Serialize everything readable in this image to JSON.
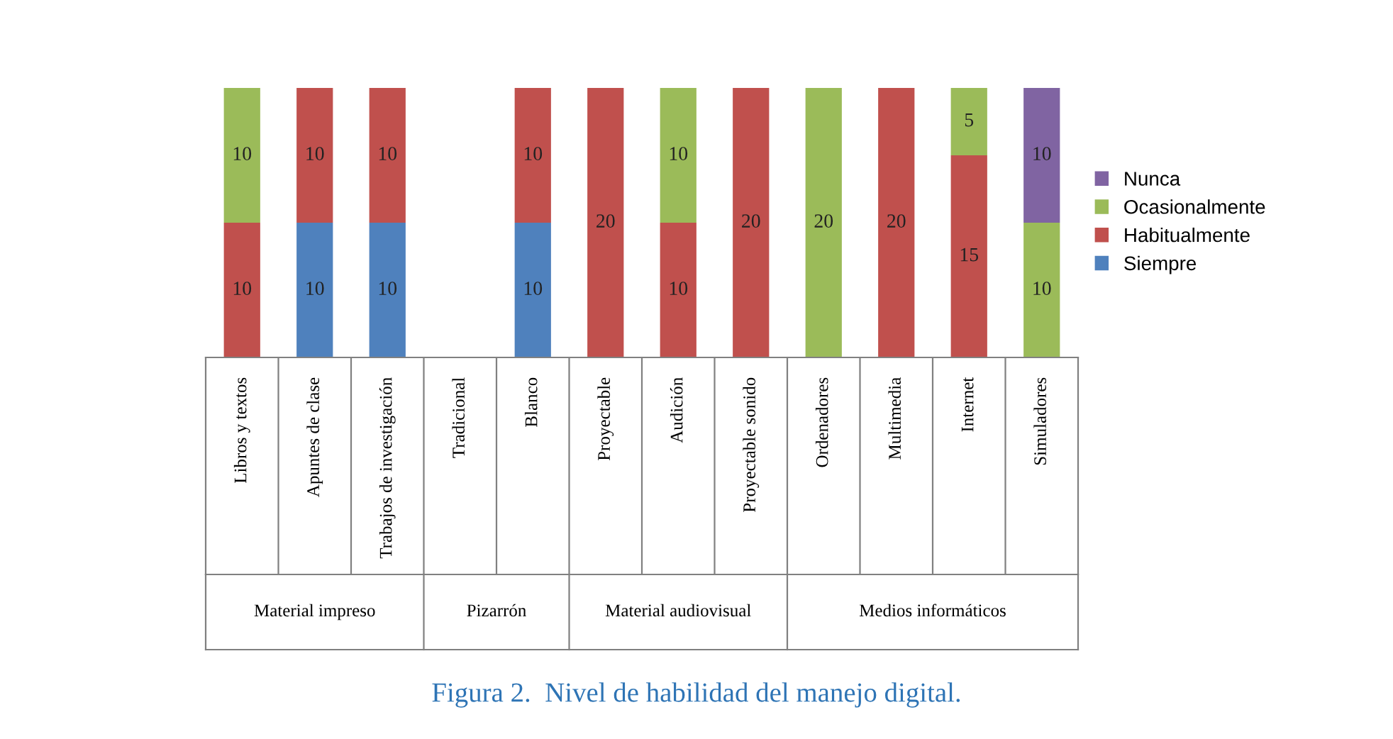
{
  "chart_data": {
    "type": "bar",
    "stacked": true,
    "data_labels": true,
    "legend": "right",
    "grid": false,
    "categories": [
      "Libros y textos",
      "Apuntes de clase",
      "Trabajos de investigación",
      "Tradicional",
      "Blanco",
      "Proyectable",
      "Audición",
      "Proyectable sonido",
      "Ordenadores",
      "Multimedia",
      "Internet",
      "Simuladores"
    ],
    "series": [
      {
        "name": "Siempre",
        "color": "#4f81bd",
        "values": [
          null,
          10,
          10,
          null,
          10,
          null,
          null,
          null,
          null,
          null,
          null,
          null
        ]
      },
      {
        "name": "Habitualmente",
        "color": "#c0504d",
        "values": [
          10,
          10,
          10,
          null,
          10,
          20,
          10,
          20,
          null,
          20,
          15,
          null
        ]
      },
      {
        "name": "Ocasionalmente",
        "color": "#9bbb59",
        "values": [
          10,
          null,
          null,
          null,
          null,
          null,
          10,
          null,
          20,
          null,
          5,
          10
        ]
      },
      {
        "name": "Nunca",
        "color": "#8064a2",
        "values": [
          null,
          null,
          null,
          null,
          null,
          null,
          null,
          null,
          null,
          null,
          null,
          10
        ]
      }
    ],
    "annotations": [
      "Material impreso",
      "Pizarrón",
      "Material audiovisual",
      "Medios informáticos",
      "Figura 2.  Nivel de habilidad del manejo digital."
    ]
  }
}
